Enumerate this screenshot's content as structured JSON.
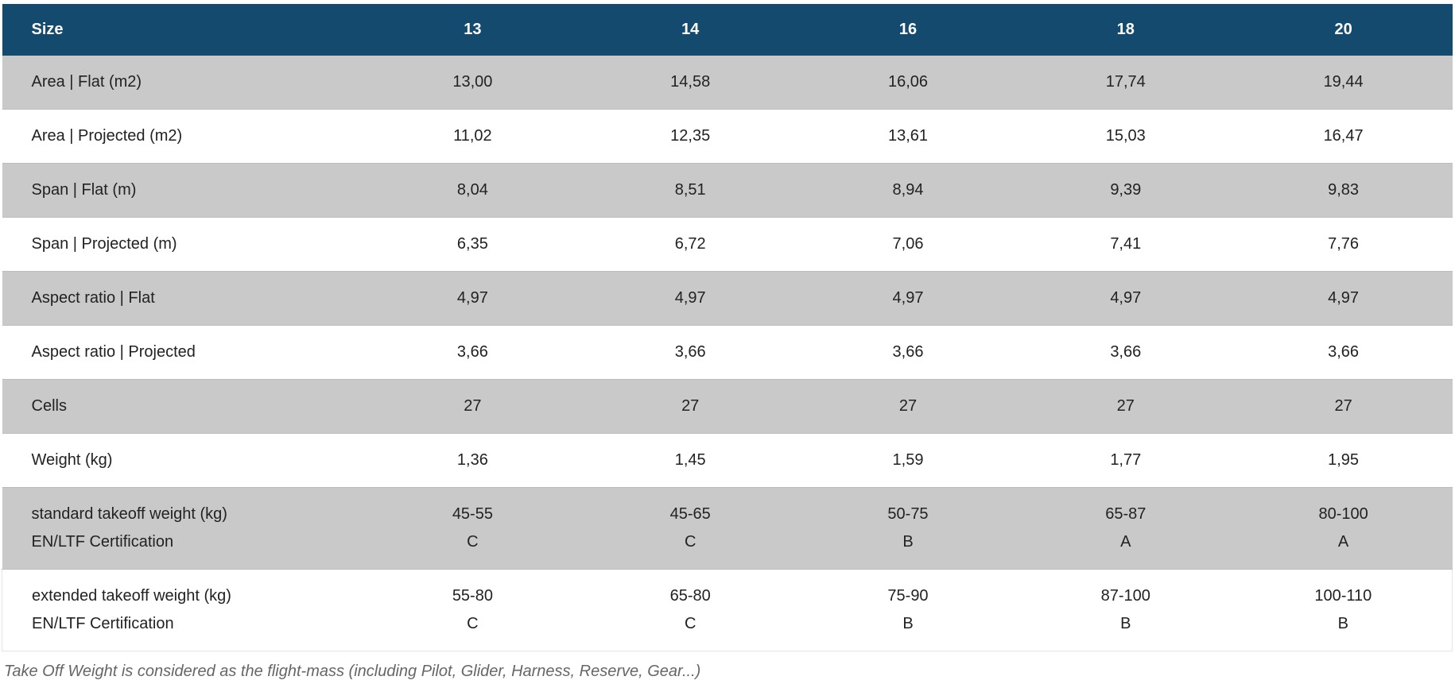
{
  "table": {
    "header": [
      "Size",
      "13",
      "14",
      "16",
      "18",
      "20"
    ],
    "rows": [
      [
        "Area | Flat (m2)",
        "13,00",
        "14,58",
        "16,06",
        "17,74",
        "19,44"
      ],
      [
        "Area | Projected (m2)",
        "11,02",
        "12,35",
        "13,61",
        "15,03",
        "16,47"
      ],
      [
        "Span | Flat (m)",
        "8,04",
        "8,51",
        "8,94",
        "9,39",
        "9,83"
      ],
      [
        "Span | Projected (m)",
        "6,35",
        "6,72",
        "7,06",
        "7,41",
        "7,76"
      ],
      [
        "Aspect ratio | Flat",
        "4,97",
        "4,97",
        "4,97",
        "4,97",
        "4,97"
      ],
      [
        "Aspect ratio | Projected",
        "3,66",
        "3,66",
        "3,66",
        "3,66",
        "3,66"
      ],
      [
        "Cells",
        "27",
        "27",
        "27",
        "27",
        "27"
      ],
      [
        "Weight (kg)",
        "1,36",
        "1,45",
        "1,59",
        "1,77",
        "1,95"
      ],
      [
        [
          "standard takeoff weight (kg)",
          "EN/LTF Certification"
        ],
        [
          "45-55",
          "C"
        ],
        [
          "45-65",
          "C"
        ],
        [
          "50-75",
          "B"
        ],
        [
          "65-87",
          "A"
        ],
        [
          "80-100",
          "A"
        ]
      ],
      [
        [
          "extended takeoff weight (kg)",
          "EN/LTF Certification"
        ],
        [
          "55-80",
          "C"
        ],
        [
          "65-80",
          "C"
        ],
        [
          "75-90",
          "B"
        ],
        [
          "87-100",
          "B"
        ],
        [
          "100-110",
          "B"
        ]
      ]
    ]
  },
  "footnote": "Take Off Weight is considered as the flight-mass (including Pilot, Glider, Harness, Reserve, Gear...)"
}
